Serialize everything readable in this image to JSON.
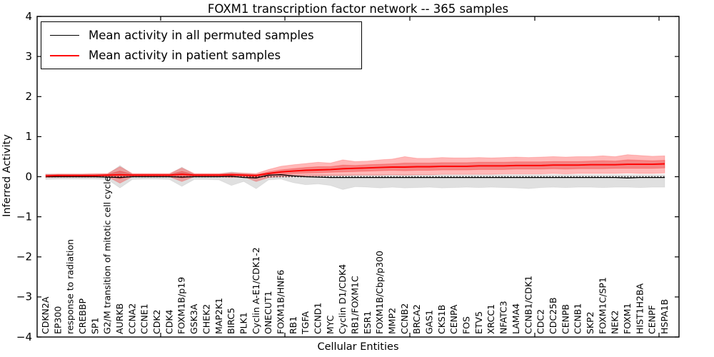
{
  "figure": {
    "title": "FOXM1 transcription factor network -- 365 samples",
    "xlabel": "Cellular Entities",
    "ylabel": "Inferred Activity"
  },
  "legend": {
    "permuted_label": "Mean activity in all permuted samples",
    "patient_label": "Mean activity in patient samples",
    "permuted_color": "#000000",
    "patient_color": "#ff0000"
  },
  "chart_data": {
    "type": "line",
    "title": "FOXM1 transcription factor network -- 365 samples",
    "xlabel": "Cellular Entities",
    "ylabel": "Inferred Activity",
    "ylim": [
      -4,
      4
    ],
    "yticks": [
      -4,
      -3,
      -2,
      -1,
      0,
      1,
      2,
      3,
      4
    ],
    "grid": false,
    "legend_position": "upper left",
    "zero_reference_line": 0,
    "categories": [
      "CDKN2A",
      "EP300",
      "response to radiation",
      "CREBBP",
      "SP1",
      "G2/M transition of mitotic cell cycle",
      "AURKB",
      "CCNA2",
      "CCNE1",
      "CDK2",
      "CDK4",
      "FOXM1B/p19",
      "GSK3A",
      "CHEK2",
      "MAP2K1",
      "BIRC5",
      "PLK1",
      "Cyclin A-E1/CDK1-2",
      "ONECUT1",
      "FOXM1B/HNF6",
      "RB1",
      "TGFA",
      "CCND1",
      "MYC",
      "Cyclin D1/CDK4",
      "RB1/FOXM1C",
      "ESR1",
      "FOXM1B/Cbp/p300",
      "MMP2",
      "CCNB2",
      "BRCA2",
      "GAS1",
      "CKS1B",
      "CENPA",
      "FOS",
      "ETV5",
      "XRCC1",
      "NFATC3",
      "LAMA4",
      "CCNB1/CDK1",
      "CDC2",
      "CDC25B",
      "CENPB",
      "CCNB1",
      "SKP2",
      "FOXM1C/SP1",
      "NEK2",
      "FOXM1",
      "HIST1H2BA",
      "CENPF",
      "HSPA1B"
    ],
    "series": [
      {
        "name": "Mean activity in all permuted samples",
        "color": "#000000",
        "width": 1.3,
        "style": "solid",
        "values": [
          0.0,
          0.0,
          0.0,
          0.0,
          0.0,
          -0.01,
          -0.02,
          0.0,
          0.0,
          0.0,
          0.0,
          -0.01,
          0.0,
          0.0,
          0.0,
          0.01,
          -0.02,
          -0.03,
          0.04,
          0.05,
          0.02,
          0.0,
          -0.01,
          -0.02,
          -0.02,
          -0.02,
          -0.02,
          -0.02,
          -0.02,
          -0.02,
          -0.02,
          -0.02,
          -0.02,
          -0.02,
          -0.02,
          -0.02,
          -0.02,
          -0.02,
          -0.02,
          -0.02,
          -0.02,
          -0.02,
          -0.02,
          -0.02,
          -0.02,
          -0.02,
          -0.02,
          -0.03,
          -0.02,
          -0.02,
          -0.02
        ]
      },
      {
        "name": "Mean activity in patient samples",
        "color": "#ff0000",
        "width": 1.9,
        "style": "solid",
        "values": [
          0.02,
          0.03,
          0.03,
          0.03,
          0.03,
          0.04,
          0.05,
          0.04,
          0.04,
          0.04,
          0.04,
          0.06,
          0.04,
          0.04,
          0.04,
          0.05,
          0.04,
          0.03,
          0.08,
          0.12,
          0.14,
          0.16,
          0.17,
          0.18,
          0.2,
          0.21,
          0.22,
          0.23,
          0.24,
          0.24,
          0.25,
          0.25,
          0.26,
          0.26,
          0.26,
          0.27,
          0.27,
          0.27,
          0.28,
          0.28,
          0.28,
          0.29,
          0.29,
          0.29,
          0.3,
          0.3,
          0.3,
          0.31,
          0.31,
          0.31,
          0.32
        ]
      }
    ],
    "bands": [
      {
        "name": "permuted-range",
        "fill": "rgba(0,0,0,0.12)",
        "edge": "rgba(0,0,0,0.06)",
        "upper": [
          0.07,
          0.06,
          0.06,
          0.06,
          0.06,
          0.06,
          0.28,
          0.06,
          0.06,
          0.06,
          0.06,
          0.24,
          0.06,
          0.06,
          0.06,
          0.12,
          0.08,
          0.06,
          0.05,
          0.05,
          0.05,
          0.05,
          0.05,
          0.05,
          0.05,
          0.05,
          0.05,
          0.05,
          0.05,
          0.05,
          0.05,
          0.05,
          0.05,
          0.05,
          0.05,
          0.05,
          0.05,
          0.05,
          0.05,
          0.05,
          0.05,
          0.05,
          0.05,
          0.05,
          0.05,
          0.05,
          0.05,
          0.05,
          0.05,
          0.05,
          0.05
        ],
        "lower": [
          -0.07,
          -0.06,
          -0.06,
          -0.06,
          -0.06,
          -0.07,
          -0.28,
          -0.07,
          -0.06,
          -0.06,
          -0.07,
          -0.24,
          -0.07,
          -0.07,
          -0.08,
          -0.22,
          -0.12,
          -0.3,
          -0.08,
          -0.06,
          -0.15,
          -0.2,
          -0.18,
          -0.22,
          -0.32,
          -0.25,
          -0.26,
          -0.28,
          -0.26,
          -0.28,
          -0.27,
          -0.26,
          -0.28,
          -0.27,
          -0.26,
          -0.27,
          -0.26,
          -0.27,
          -0.28,
          -0.3,
          -0.27,
          -0.26,
          -0.27,
          -0.26,
          -0.26,
          -0.27,
          -0.26,
          -0.26,
          -0.27,
          -0.26,
          -0.26
        ]
      },
      {
        "name": "patient-outer-range",
        "fill": "rgba(255,0,0,0.28)",
        "edge": "rgba(255,0,0,0.18)",
        "upper": [
          0.06,
          0.07,
          0.07,
          0.07,
          0.08,
          0.08,
          0.25,
          0.08,
          0.08,
          0.08,
          0.08,
          0.22,
          0.08,
          0.08,
          0.08,
          0.1,
          0.09,
          0.08,
          0.18,
          0.26,
          0.3,
          0.33,
          0.36,
          0.34,
          0.42,
          0.38,
          0.39,
          0.42,
          0.44,
          0.5,
          0.46,
          0.46,
          0.48,
          0.47,
          0.47,
          0.48,
          0.47,
          0.48,
          0.49,
          0.48,
          0.49,
          0.5,
          0.49,
          0.5,
          0.5,
          0.52,
          0.5,
          0.55,
          0.53,
          0.51,
          0.52
        ],
        "lower": [
          -0.02,
          -0.01,
          -0.01,
          -0.01,
          -0.01,
          0.0,
          -0.16,
          0.0,
          0.0,
          0.0,
          0.0,
          -0.12,
          0.0,
          0.0,
          0.0,
          -0.02,
          0.0,
          -0.12,
          -0.02,
          0.0,
          0.01,
          0.02,
          0.02,
          0.03,
          0.03,
          0.04,
          0.04,
          0.04,
          0.05,
          0.04,
          0.05,
          0.05,
          0.06,
          0.06,
          0.06,
          0.06,
          0.06,
          0.07,
          0.07,
          0.07,
          0.07,
          0.08,
          0.07,
          0.08,
          0.08,
          0.08,
          0.08,
          0.09,
          0.08,
          0.08,
          0.09
        ]
      },
      {
        "name": "patient-inner-range",
        "fill": "rgba(220,0,0,0.28)",
        "edge": "rgba(255,0,0,0.25)",
        "upper": [
          0.04,
          0.05,
          0.05,
          0.05,
          0.05,
          0.06,
          0.14,
          0.06,
          0.06,
          0.06,
          0.06,
          0.13,
          0.06,
          0.06,
          0.06,
          0.07,
          0.06,
          0.05,
          0.12,
          0.17,
          0.2,
          0.23,
          0.25,
          0.25,
          0.29,
          0.28,
          0.3,
          0.31,
          0.32,
          0.34,
          0.34,
          0.34,
          0.35,
          0.35,
          0.35,
          0.36,
          0.36,
          0.36,
          0.37,
          0.37,
          0.37,
          0.38,
          0.38,
          0.38,
          0.39,
          0.4,
          0.39,
          0.42,
          0.41,
          0.4,
          0.41
        ],
        "lower": [
          0.0,
          0.01,
          0.01,
          0.01,
          0.01,
          0.02,
          -0.05,
          0.02,
          0.02,
          0.02,
          0.02,
          -0.03,
          0.02,
          0.02,
          0.02,
          0.02,
          0.02,
          -0.02,
          0.03,
          0.06,
          0.08,
          0.09,
          0.1,
          0.11,
          0.12,
          0.13,
          0.14,
          0.15,
          0.16,
          0.15,
          0.16,
          0.16,
          0.17,
          0.17,
          0.17,
          0.18,
          0.18,
          0.18,
          0.19,
          0.19,
          0.19,
          0.2,
          0.19,
          0.2,
          0.2,
          0.2,
          0.21,
          0.21,
          0.21,
          0.21,
          0.22
        ]
      }
    ]
  }
}
